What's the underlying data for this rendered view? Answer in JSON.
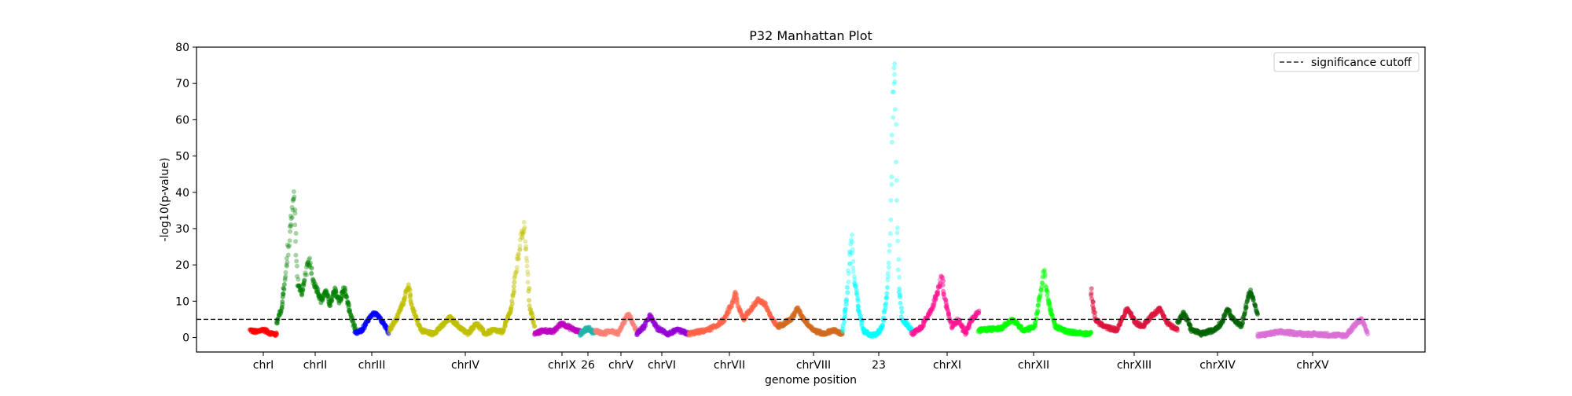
{
  "chart_data": {
    "type": "scatter",
    "title": "P32 Manhattan Plot",
    "xlabel": "genome position",
    "ylabel": "-log10(p-value)",
    "ylim": [
      -4,
      80
    ],
    "y_ticks": [
      0,
      10,
      20,
      30,
      40,
      50,
      60,
      70,
      80
    ],
    "threshold": {
      "value": 5,
      "label": "significance cutoff",
      "style": "dashed",
      "color": "#000000"
    },
    "legend": {
      "position": "top-right",
      "entries": [
        "significance cutoff"
      ]
    },
    "grid": false,
    "categories": [
      "chrI",
      "chrII",
      "chrIII",
      "chrIV",
      "chrIX",
      "26",
      "chrV",
      "chrVI",
      "chrVII",
      "chrVIII",
      "23",
      "chrXI",
      "chrXII",
      "chrXIII",
      "chrXIV",
      "chrXV"
    ],
    "series": [
      {
        "color": "#ff0000",
        "points": [
          [
            0.0,
            2.0
          ],
          [
            0.25,
            1.5
          ],
          [
            0.5,
            2.2
          ],
          [
            0.75,
            1.2
          ],
          [
            1.0,
            0.8
          ]
        ]
      },
      {
        "color": "#008000",
        "points": [
          [
            0.0,
            4.0
          ],
          [
            0.06,
            8.0
          ],
          [
            0.12,
            18.0
          ],
          [
            0.17,
            30.0
          ],
          [
            0.2,
            36.0
          ],
          [
            0.22,
            40.5
          ],
          [
            0.24,
            28.0
          ],
          [
            0.27,
            15.0
          ],
          [
            0.32,
            12.0
          ],
          [
            0.38,
            19.0
          ],
          [
            0.42,
            21.0
          ],
          [
            0.46,
            16.0
          ],
          [
            0.52,
            13.0
          ],
          [
            0.57,
            10.0
          ],
          [
            0.62,
            13.0
          ],
          [
            0.68,
            9.0
          ],
          [
            0.74,
            13.0
          ],
          [
            0.8,
            10.0
          ],
          [
            0.86,
            13.5
          ],
          [
            0.92,
            8.0
          ],
          [
            1.0,
            2.0
          ]
        ]
      },
      {
        "color": "#0000ff",
        "points": [
          [
            0.0,
            1.0
          ],
          [
            0.2,
            2.0
          ],
          [
            0.4,
            5.0
          ],
          [
            0.6,
            7.0
          ],
          [
            0.8,
            4.5
          ],
          [
            1.0,
            1.5
          ]
        ]
      },
      {
        "color": "#bfbf00",
        "points": [
          [
            0.0,
            2.0
          ],
          [
            0.05,
            5.0
          ],
          [
            0.1,
            10.0
          ],
          [
            0.13,
            14.5
          ],
          [
            0.16,
            8.0
          ],
          [
            0.22,
            2.0
          ],
          [
            0.3,
            1.0
          ],
          [
            0.36,
            3.0
          ],
          [
            0.42,
            5.5
          ],
          [
            0.48,
            3.0
          ],
          [
            0.54,
            1.0
          ],
          [
            0.6,
            4.0
          ],
          [
            0.66,
            1.0
          ],
          [
            0.72,
            2.0
          ],
          [
            0.78,
            1.5
          ],
          [
            0.84,
            8.0
          ],
          [
            0.88,
            20.0
          ],
          [
            0.91,
            28.0
          ],
          [
            0.93,
            31.0
          ],
          [
            0.95,
            20.0
          ],
          [
            0.97,
            8.0
          ],
          [
            1.0,
            3.0
          ]
        ]
      },
      {
        "color": "#bf00bf",
        "points": [
          [
            0.0,
            1.0
          ],
          [
            0.2,
            2.0
          ],
          [
            0.4,
            1.5
          ],
          [
            0.6,
            4.0
          ],
          [
            0.8,
            2.5
          ],
          [
            1.0,
            1.5
          ]
        ]
      },
      {
        "color": "#20b2aa",
        "points": [
          [
            0.0,
            1.0
          ],
          [
            0.3,
            2.0
          ],
          [
            0.6,
            2.5
          ],
          [
            1.0,
            1.0
          ]
        ]
      },
      {
        "color": "#fa8072",
        "points": [
          [
            0.0,
            2.0
          ],
          [
            0.2,
            1.0
          ],
          [
            0.4,
            2.0
          ],
          [
            0.55,
            1.0
          ],
          [
            0.7,
            4.5
          ],
          [
            0.8,
            6.5
          ],
          [
            0.9,
            4.0
          ],
          [
            1.0,
            1.5
          ]
        ]
      },
      {
        "color": "#9400d3",
        "points": [
          [
            0.0,
            1.0
          ],
          [
            0.15,
            3.0
          ],
          [
            0.25,
            6.0
          ],
          [
            0.4,
            2.5
          ],
          [
            0.6,
            1.0
          ],
          [
            0.8,
            2.0
          ],
          [
            1.0,
            1.0
          ]
        ]
      },
      {
        "color": "#ff6347",
        "points": [
          [
            0.0,
            1.0
          ],
          [
            0.1,
            1.5
          ],
          [
            0.2,
            2.0
          ],
          [
            0.3,
            3.0
          ],
          [
            0.4,
            5.0
          ],
          [
            0.48,
            9.0
          ],
          [
            0.52,
            12.5
          ],
          [
            0.56,
            8.0
          ],
          [
            0.62,
            5.0
          ],
          [
            0.7,
            8.0
          ],
          [
            0.78,
            10.5
          ],
          [
            0.86,
            9.0
          ],
          [
            0.93,
            5.0
          ],
          [
            1.0,
            3.0
          ]
        ]
      },
      {
        "color": "#d2691e",
        "points": [
          [
            0.0,
            3.0
          ],
          [
            0.2,
            5.0
          ],
          [
            0.3,
            8.0
          ],
          [
            0.4,
            5.0
          ],
          [
            0.55,
            2.0
          ],
          [
            0.7,
            1.0
          ],
          [
            0.85,
            2.0
          ],
          [
            1.0,
            1.0
          ]
        ]
      },
      {
        "color": "#00ffff",
        "points": [
          [
            0.0,
            2.0
          ],
          [
            0.06,
            10.0
          ],
          [
            0.1,
            22.0
          ],
          [
            0.13,
            27.5
          ],
          [
            0.17,
            16.0
          ],
          [
            0.23,
            8.0
          ],
          [
            0.3,
            2.0
          ],
          [
            0.4,
            0.5
          ],
          [
            0.5,
            1.0
          ],
          [
            0.58,
            3.0
          ],
          [
            0.64,
            12.0
          ],
          [
            0.68,
            25.0
          ],
          [
            0.71,
            50.0
          ],
          [
            0.73,
            68.0
          ],
          [
            0.75,
            76.0
          ],
          [
            0.77,
            55.0
          ],
          [
            0.79,
            30.0
          ],
          [
            0.82,
            14.0
          ],
          [
            0.86,
            5.0
          ],
          [
            1.0,
            2.0
          ]
        ]
      },
      {
        "color": "#ff1493",
        "points": [
          [
            0.0,
            1.0
          ],
          [
            0.15,
            3.0
          ],
          [
            0.3,
            8.0
          ],
          [
            0.4,
            13.0
          ],
          [
            0.45,
            17.0
          ],
          [
            0.5,
            10.0
          ],
          [
            0.6,
            3.0
          ],
          [
            0.7,
            5.0
          ],
          [
            0.8,
            1.0
          ],
          [
            0.9,
            5.0
          ],
          [
            1.0,
            7.0
          ]
        ]
      },
      {
        "color": "#00ff00",
        "points": [
          [
            0.0,
            2.0
          ],
          [
            0.2,
            2.5
          ],
          [
            0.3,
            5.0
          ],
          [
            0.4,
            2.0
          ],
          [
            0.5,
            3.0
          ],
          [
            0.55,
            12.0
          ],
          [
            0.58,
            19.0
          ],
          [
            0.62,
            10.0
          ],
          [
            0.68,
            3.0
          ],
          [
            0.8,
            1.5
          ],
          [
            1.0,
            1.0
          ]
        ]
      },
      {
        "color": "#dc143c",
        "points": [
          [
            0.0,
            13.0
          ],
          [
            0.05,
            5.0
          ],
          [
            0.15,
            3.0
          ],
          [
            0.3,
            2.0
          ],
          [
            0.42,
            8.0
          ],
          [
            0.52,
            4.0
          ],
          [
            0.6,
            3.0
          ],
          [
            0.7,
            6.0
          ],
          [
            0.8,
            8.0
          ],
          [
            0.88,
            4.0
          ],
          [
            1.0,
            2.0
          ]
        ]
      },
      {
        "color": "#006400",
        "points": [
          [
            0.0,
            4.0
          ],
          [
            0.08,
            7.0
          ],
          [
            0.18,
            2.0
          ],
          [
            0.3,
            1.0
          ],
          [
            0.45,
            2.0
          ],
          [
            0.55,
            4.0
          ],
          [
            0.62,
            8.0
          ],
          [
            0.7,
            5.0
          ],
          [
            0.8,
            3.0
          ],
          [
            0.88,
            11.0
          ],
          [
            0.92,
            13.0
          ],
          [
            1.0,
            6.0
          ]
        ]
      },
      {
        "color": "#da70d6",
        "points": [
          [
            0.0,
            0.5
          ],
          [
            0.2,
            1.5
          ],
          [
            0.4,
            1.0
          ],
          [
            0.6,
            0.8
          ],
          [
            0.8,
            0.5
          ],
          [
            0.9,
            4.0
          ],
          [
            0.95,
            5.0
          ],
          [
            1.0,
            1.0
          ]
        ]
      }
    ]
  }
}
